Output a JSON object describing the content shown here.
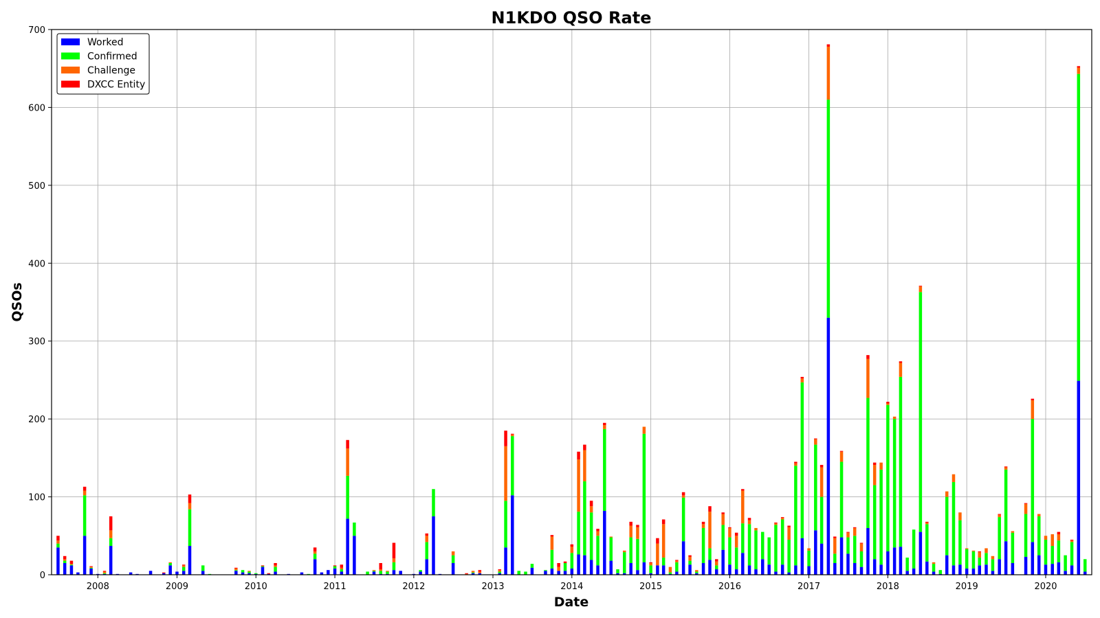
{
  "chart_data": {
    "type": "bar",
    "stacked": true,
    "title": "N1KDO QSO Rate",
    "xlabel": "Date",
    "ylabel": "QSOs",
    "ylim": [
      0,
      700
    ],
    "yticks": [
      0,
      100,
      200,
      300,
      400,
      500,
      600,
      700
    ],
    "xlim": [
      "2007-06-01",
      "2020-08-01"
    ],
    "xticks": [
      "2008",
      "2009",
      "2010",
      "2011",
      "2012",
      "2013",
      "2014",
      "2015",
      "2016",
      "2017",
      "2018",
      "2019",
      "2020"
    ],
    "grid": true,
    "legend_position": "top-left",
    "series": [
      {
        "name": "Worked",
        "color": "#0000ff"
      },
      {
        "name": "Confirmed",
        "color": "#00ff00"
      },
      {
        "name": "Challenge",
        "color": "#ff6600"
      },
      {
        "name": "DXCC Entity",
        "color": "#ff0000"
      }
    ],
    "data": [
      [
        "2007-07",
        35,
        5,
        4,
        6
      ],
      [
        "2007-08",
        15,
        3,
        2,
        4
      ],
      [
        "2007-09",
        12,
        1,
        1,
        4
      ],
      [
        "2007-10",
        3,
        0,
        0,
        0
      ],
      [
        "2007-11",
        50,
        52,
        6,
        5
      ],
      [
        "2007-12",
        8,
        1,
        1,
        1
      ],
      [
        "2008-01",
        1,
        0,
        0,
        0
      ],
      [
        "2008-02",
        1,
        1,
        2,
        1
      ],
      [
        "2008-03",
        37,
        10,
        10,
        18
      ],
      [
        "2008-04",
        1,
        0,
        0,
        0
      ],
      [
        "2008-06",
        3,
        0,
        0,
        0
      ],
      [
        "2008-07",
        1,
        0,
        0,
        0
      ],
      [
        "2008-09",
        5,
        0,
        0,
        0
      ],
      [
        "2008-11",
        2,
        0,
        0,
        1
      ],
      [
        "2008-12",
        12,
        3,
        1,
        0
      ],
      [
        "2009-01",
        4,
        0,
        0,
        0
      ],
      [
        "2009-02",
        5,
        5,
        2,
        1
      ],
      [
        "2009-03",
        37,
        47,
        8,
        11
      ],
      [
        "2009-05",
        5,
        7,
        0,
        0
      ],
      [
        "2009-06",
        0,
        1,
        0,
        0
      ],
      [
        "2009-10",
        5,
        1,
        2,
        1
      ],
      [
        "2009-11",
        3,
        3,
        0,
        0
      ],
      [
        "2009-12",
        2,
        2,
        1,
        0
      ],
      [
        "2010-01",
        1,
        1,
        0,
        0
      ],
      [
        "2010-02",
        10,
        1,
        0,
        1
      ],
      [
        "2010-03",
        1,
        0,
        0,
        1
      ],
      [
        "2010-04",
        4,
        6,
        2,
        3
      ],
      [
        "2010-06",
        1,
        0,
        0,
        0
      ],
      [
        "2010-08",
        3,
        0,
        0,
        0
      ],
      [
        "2010-09",
        0,
        1,
        0,
        0
      ],
      [
        "2010-10",
        20,
        7,
        3,
        5
      ],
      [
        "2010-11",
        3,
        0,
        0,
        0
      ],
      [
        "2010-12",
        6,
        0,
        0,
        0
      ],
      [
        "2011-01",
        8,
        3,
        0,
        1
      ],
      [
        "2011-02",
        4,
        3,
        2,
        4
      ],
      [
        "2011-03",
        72,
        55,
        35,
        11
      ],
      [
        "2011-04",
        50,
        17,
        0,
        0
      ],
      [
        "2011-06",
        0,
        4,
        0,
        0
      ],
      [
        "2011-07",
        4,
        1,
        1,
        0
      ],
      [
        "2011-08",
        1,
        4,
        2,
        8
      ],
      [
        "2011-09",
        1,
        3,
        1,
        0
      ],
      [
        "2011-10",
        6,
        10,
        5,
        20
      ],
      [
        "2011-11",
        5,
        0,
        0,
        0
      ],
      [
        "2012-01",
        1,
        0,
        0,
        0
      ],
      [
        "2012-02",
        4,
        2,
        0,
        0
      ],
      [
        "2012-03",
        20,
        22,
        8,
        3
      ],
      [
        "2012-04",
        75,
        35,
        0,
        0
      ],
      [
        "2012-05",
        1,
        0,
        0,
        0
      ],
      [
        "2012-07",
        15,
        10,
        5,
        0
      ],
      [
        "2012-09",
        0,
        0,
        1,
        1
      ],
      [
        "2012-10",
        2,
        1,
        2,
        0
      ],
      [
        "2012-11",
        2,
        0,
        2,
        2
      ],
      [
        "2013-02",
        2,
        2,
        2,
        1
      ],
      [
        "2013-03",
        35,
        60,
        70,
        20
      ],
      [
        "2013-04",
        102,
        76,
        2,
        1
      ],
      [
        "2013-05",
        0,
        5,
        0,
        0
      ],
      [
        "2013-06",
        0,
        4,
        0,
        0
      ],
      [
        "2013-07",
        9,
        5,
        0,
        0
      ],
      [
        "2013-09",
        5,
        1,
        0,
        0
      ],
      [
        "2013-10",
        8,
        24,
        17,
        2
      ],
      [
        "2013-11",
        5,
        0,
        5,
        5
      ],
      [
        "2013-12",
        5,
        10,
        0,
        2
      ],
      [
        "2014-01",
        8,
        20,
        8,
        3
      ],
      [
        "2014-02",
        26,
        55,
        67,
        10
      ],
      [
        "2014-03",
        25,
        95,
        40,
        7
      ],
      [
        "2014-04",
        19,
        61,
        8,
        7
      ],
      [
        "2014-05",
        12,
        38,
        6,
        3
      ],
      [
        "2014-06",
        82,
        105,
        5,
        3
      ],
      [
        "2014-07",
        18,
        30,
        1,
        0
      ],
      [
        "2014-08",
        2,
        5,
        0,
        0
      ],
      [
        "2014-09",
        2,
        27,
        2,
        0
      ],
      [
        "2014-10",
        15,
        33,
        15,
        5
      ],
      [
        "2014-11",
        6,
        40,
        15,
        3
      ],
      [
        "2014-12",
        16,
        165,
        9,
        0
      ],
      [
        "2015-01",
        2,
        10,
        3,
        1
      ],
      [
        "2015-02",
        12,
        0,
        28,
        7
      ],
      [
        "2015-03",
        12,
        10,
        43,
        6
      ],
      [
        "2015-04",
        1,
        2,
        7,
        0
      ],
      [
        "2015-05",
        4,
        12,
        2,
        1
      ],
      [
        "2015-06",
        43,
        56,
        3,
        4
      ],
      [
        "2015-07",
        13,
        5,
        5,
        2
      ],
      [
        "2015-08",
        2,
        2,
        2,
        0
      ],
      [
        "2015-09",
        15,
        45,
        5,
        3
      ],
      [
        "2015-10",
        19,
        15,
        47,
        7
      ],
      [
        "2015-11",
        7,
        5,
        5,
        3
      ],
      [
        "2015-12",
        32,
        32,
        14,
        2
      ],
      [
        "2016-01",
        13,
        35,
        12,
        1
      ],
      [
        "2016-02",
        7,
        28,
        15,
        4
      ],
      [
        "2016-03",
        28,
        38,
        42,
        2
      ],
      [
        "2016-04",
        12,
        53,
        5,
        3
      ],
      [
        "2016-05",
        7,
        50,
        3,
        0
      ],
      [
        "2016-06",
        20,
        35,
        0,
        0
      ],
      [
        "2016-07",
        13,
        35,
        0,
        0
      ],
      [
        "2016-08",
        4,
        60,
        2,
        1
      ],
      [
        "2016-09",
        13,
        58,
        2,
        1
      ],
      [
        "2016-10",
        3,
        42,
        16,
        2
      ],
      [
        "2016-11",
        12,
        128,
        3,
        2
      ],
      [
        "2016-12",
        47,
        200,
        5,
        2
      ],
      [
        "2017-01",
        11,
        20,
        3,
        0
      ],
      [
        "2017-02",
        57,
        110,
        7,
        1
      ],
      [
        "2017-03",
        40,
        60,
        38,
        3
      ],
      [
        "2017-04",
        330,
        280,
        68,
        3
      ],
      [
        "2017-05",
        15,
        12,
        20,
        2
      ],
      [
        "2017-06",
        48,
        97,
        13,
        1
      ],
      [
        "2017-07",
        27,
        21,
        6,
        1
      ],
      [
        "2017-08",
        15,
        35,
        10,
        1
      ],
      [
        "2017-09",
        10,
        20,
        10,
        1
      ],
      [
        "2017-10",
        60,
        167,
        50,
        5
      ],
      [
        "2017-11",
        20,
        95,
        26,
        3
      ],
      [
        "2017-12",
        13,
        122,
        9,
        0
      ],
      [
        "2018-01",
        30,
        188,
        2,
        2
      ],
      [
        "2018-02",
        35,
        165,
        3,
        0
      ],
      [
        "2018-03",
        36,
        218,
        18,
        2
      ],
      [
        "2018-04",
        5,
        17,
        0,
        0
      ],
      [
        "2018-05",
        8,
        50,
        0,
        0
      ],
      [
        "2018-06",
        55,
        308,
        7,
        1
      ],
      [
        "2018-07",
        17,
        48,
        2,
        1
      ],
      [
        "2018-08",
        4,
        10,
        2,
        0
      ],
      [
        "2018-09",
        1,
        5,
        0,
        0
      ],
      [
        "2018-10",
        25,
        75,
        7,
        0
      ],
      [
        "2018-11",
        12,
        107,
        10,
        0
      ],
      [
        "2018-12",
        13,
        57,
        10,
        0
      ],
      [
        "2019-01",
        8,
        25,
        1,
        0
      ],
      [
        "2019-02",
        8,
        22,
        1,
        0
      ],
      [
        "2019-03",
        12,
        10,
        7,
        1
      ],
      [
        "2019-04",
        13,
        15,
        6,
        0
      ],
      [
        "2019-05",
        5,
        15,
        4,
        0
      ],
      [
        "2019-06",
        20,
        54,
        3,
        1
      ],
      [
        "2019-07",
        43,
        92,
        3,
        1
      ],
      [
        "2019-08",
        15,
        39,
        2,
        0
      ],
      [
        "2019-10",
        23,
        55,
        13,
        1
      ],
      [
        "2019-11",
        42,
        158,
        24,
        2
      ],
      [
        "2019-12",
        25,
        50,
        3,
        0
      ],
      [
        "2020-01",
        13,
        32,
        5,
        0
      ],
      [
        "2020-02",
        14,
        23,
        15,
        0
      ],
      [
        "2020-03",
        16,
        28,
        8,
        3
      ],
      [
        "2020-04",
        5,
        20,
        0,
        0
      ],
      [
        "2020-05",
        12,
        30,
        2,
        1
      ],
      [
        "2020-06",
        249,
        394,
        8,
        2
      ],
      [
        "2020-07",
        4,
        16,
        0,
        0
      ]
    ]
  }
}
